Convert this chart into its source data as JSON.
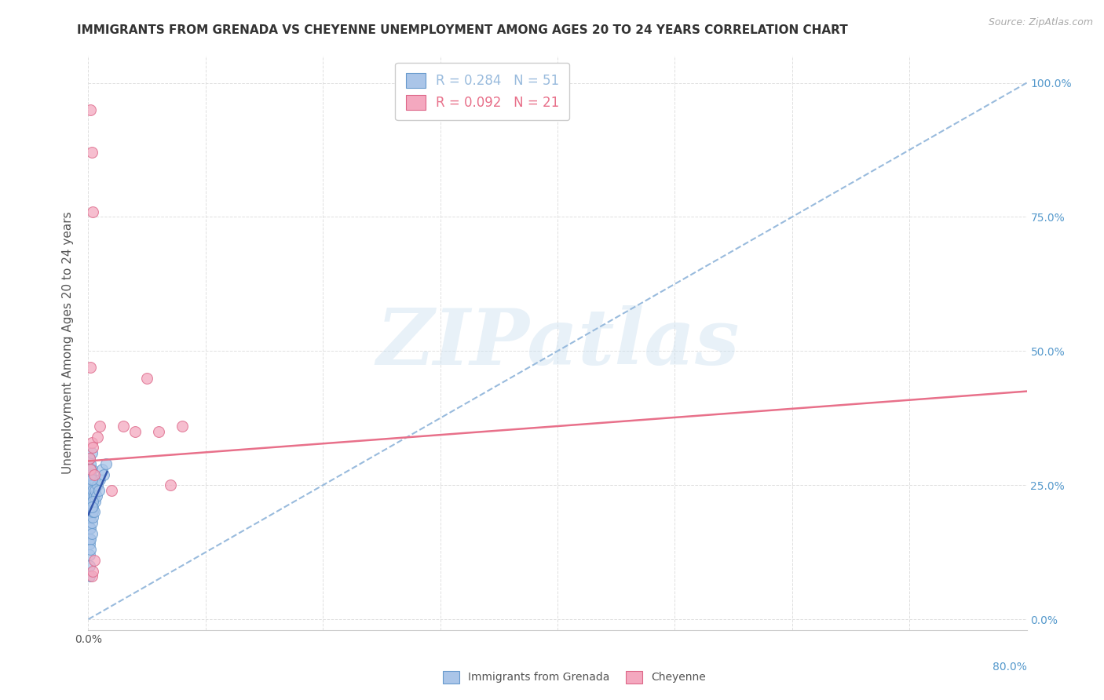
{
  "title": "IMMIGRANTS FROM GRENADA VS CHEYENNE UNEMPLOYMENT AMONG AGES 20 TO 24 YEARS CORRELATION CHART",
  "source": "Source: ZipAtlas.com",
  "ylabel": "Unemployment Among Ages 20 to 24 years",
  "xlim": [
    0.0,
    0.8
  ],
  "ylim": [
    -0.02,
    1.05
  ],
  "watermark_text": "ZIPatlas",
  "legend_entries": [
    {
      "label": "Immigrants from Grenada",
      "color": "#aac5e8",
      "R": "0.284",
      "N": "51"
    },
    {
      "label": "Cheyenne",
      "color": "#f4a8bf",
      "R": "0.092",
      "N": "21"
    }
  ],
  "blue_scatter_x": [
    0.001,
    0.001,
    0.001,
    0.001,
    0.001,
    0.001,
    0.001,
    0.001,
    0.001,
    0.001,
    0.002,
    0.002,
    0.002,
    0.002,
    0.002,
    0.002,
    0.002,
    0.002,
    0.002,
    0.003,
    0.003,
    0.003,
    0.003,
    0.003,
    0.003,
    0.003,
    0.004,
    0.004,
    0.004,
    0.004,
    0.004,
    0.005,
    0.005,
    0.005,
    0.006,
    0.006,
    0.007,
    0.008,
    0.009,
    0.01,
    0.012,
    0.013,
    0.015,
    0.002,
    0.003,
    0.002,
    0.004,
    0.003,
    0.002,
    0.001,
    0.003
  ],
  "blue_scatter_y": [
    0.21,
    0.19,
    0.17,
    0.15,
    0.14,
    0.12,
    0.1,
    0.08,
    0.22,
    0.25,
    0.23,
    0.21,
    0.19,
    0.17,
    0.15,
    0.13,
    0.24,
    0.26,
    0.27,
    0.22,
    0.2,
    0.18,
    0.16,
    0.25,
    0.23,
    0.28,
    0.21,
    0.24,
    0.19,
    0.22,
    0.2,
    0.23,
    0.2,
    0.26,
    0.22,
    0.24,
    0.23,
    0.25,
    0.24,
    0.26,
    0.28,
    0.27,
    0.29,
    0.27,
    0.26,
    0.29,
    0.22,
    0.21,
    0.28,
    0.3,
    0.31
  ],
  "pink_scatter_x": [
    0.001,
    0.002,
    0.003,
    0.004,
    0.005,
    0.008,
    0.01,
    0.02,
    0.03,
    0.04,
    0.05,
    0.06,
    0.07,
    0.08,
    0.002,
    0.003,
    0.004,
    0.002,
    0.003,
    0.004,
    0.005
  ],
  "pink_scatter_y": [
    0.3,
    0.28,
    0.33,
    0.32,
    0.27,
    0.34,
    0.36,
    0.24,
    0.36,
    0.35,
    0.45,
    0.35,
    0.25,
    0.36,
    0.95,
    0.87,
    0.76,
    0.47,
    0.08,
    0.09,
    0.11
  ],
  "blue_trend_x": [
    0.0,
    0.8
  ],
  "blue_trend_y": [
    0.0,
    1.0
  ],
  "blue_cluster_trend_x": [
    0.0,
    0.016
  ],
  "blue_cluster_trend_y": [
    0.195,
    0.275
  ],
  "pink_trend_x": [
    0.0,
    0.8
  ],
  "pink_trend_y": [
    0.295,
    0.425
  ],
  "title_fontsize": 11,
  "source_fontsize": 9,
  "axis_label_fontsize": 11,
  "tick_fontsize": 10,
  "legend_fontsize": 12,
  "scatter_size": 100,
  "background_color": "#ffffff",
  "grid_color": "#e0e0e0",
  "blue_color": "#aac5e8",
  "blue_edge_color": "#6699cc",
  "pink_color": "#f4a8bf",
  "pink_edge_color": "#dd6688",
  "blue_trend_color": "#99bbdd",
  "blue_cluster_trend_color": "#3355aa",
  "pink_trend_color": "#e8708a",
  "right_tick_color": "#5599cc"
}
